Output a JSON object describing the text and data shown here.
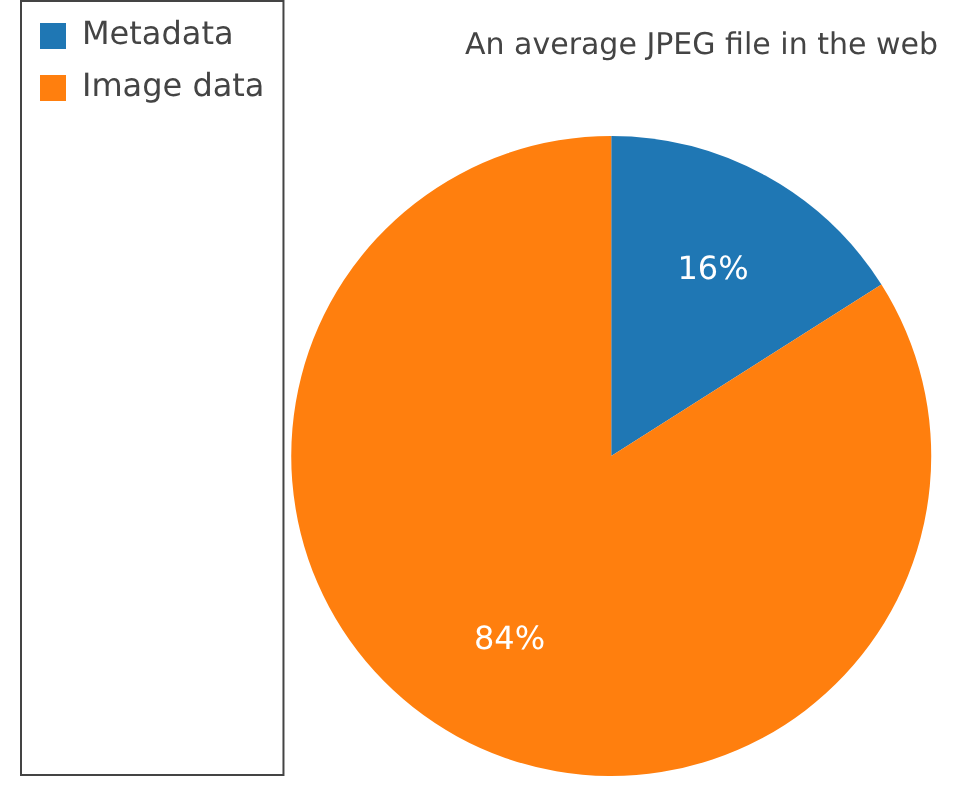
{
  "chart_data": {
    "type": "pie",
    "title": "An average JPEG file in the web",
    "categories": [
      "Metadata",
      "Image data"
    ],
    "values": [
      16,
      84
    ],
    "value_labels": [
      "16%",
      "84%"
    ],
    "colors": [
      "#1f77b4",
      "#ff7f0e"
    ],
    "legend": "top left"
  }
}
